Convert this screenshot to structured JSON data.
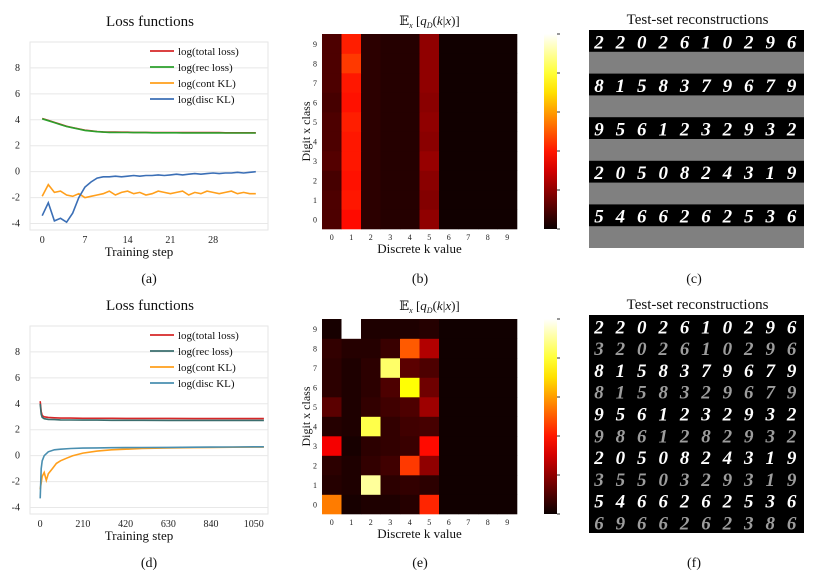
{
  "panels": {
    "a": {
      "caption": "(a)",
      "chart_data": {
        "type": "line",
        "title": "Loss functions",
        "xlabel": "Training step",
        "ylabel": "",
        "xlim": [
          -2,
          37
        ],
        "ylim": [
          -4.5,
          10
        ],
        "xticks": [
          0,
          7,
          14,
          21,
          28
        ],
        "yticks": [
          -4,
          -2,
          0,
          2,
          4,
          6,
          8
        ],
        "legend_loc": "upper-right",
        "series": [
          {
            "name": "log(total loss)",
            "color": "#d62728",
            "x": [
              0,
              1,
              2,
              3,
              4,
              5,
              6,
              7,
              8,
              9,
              10,
              11,
              12,
              13,
              14,
              15,
              16,
              17,
              18,
              19,
              20,
              21,
              22,
              23,
              24,
              25,
              26,
              27,
              28,
              29,
              30,
              31,
              32,
              33,
              34,
              35
            ],
            "y": [
              4.1,
              3.95,
              3.8,
              3.65,
              3.5,
              3.4,
              3.3,
              3.2,
              3.15,
              3.1,
              3.07,
              3.05,
              3.05,
              3.04,
              3.04,
              3.03,
              3.03,
              3.03,
              3.02,
              3.02,
              3.02,
              3.02,
              3.02,
              3.01,
              3.01,
              3.01,
              3.01,
              3.01,
              3.01,
              3.01,
              3.0,
              3.0,
              3.0,
              3.0,
              3.0,
              3.0
            ]
          },
          {
            "name": "log(rec loss)",
            "color": "#2ca02c",
            "x": [
              0,
              1,
              2,
              3,
              4,
              5,
              6,
              7,
              8,
              9,
              10,
              11,
              12,
              13,
              14,
              15,
              16,
              17,
              18,
              19,
              20,
              21,
              22,
              23,
              24,
              25,
              26,
              27,
              28,
              29,
              30,
              31,
              32,
              33,
              34,
              35
            ],
            "y": [
              4.08,
              3.93,
              3.78,
              3.63,
              3.48,
              3.38,
              3.28,
              3.18,
              3.13,
              3.08,
              3.05,
              3.03,
              3.03,
              3.02,
              3.02,
              3.01,
              3.01,
              3.01,
              3.0,
              3.0,
              3.0,
              3.0,
              3.0,
              2.99,
              2.99,
              2.99,
              2.99,
              2.99,
              2.99,
              2.99,
              2.98,
              2.98,
              2.98,
              2.98,
              2.98,
              2.98
            ]
          },
          {
            "name": "log(cont KL)",
            "color": "#ff9f1c",
            "x": [
              0,
              1,
              2,
              3,
              4,
              5,
              6,
              7,
              8,
              9,
              10,
              11,
              12,
              13,
              14,
              15,
              16,
              17,
              18,
              19,
              20,
              21,
              22,
              23,
              24,
              25,
              26,
              27,
              28,
              29,
              30,
              31,
              32,
              33,
              34,
              35
            ],
            "y": [
              -1.9,
              -1.0,
              -1.6,
              -1.5,
              -1.8,
              -1.9,
              -1.7,
              -2.0,
              -1.9,
              -1.8,
              -1.7,
              -1.5,
              -1.8,
              -1.6,
              -1.5,
              -1.7,
              -1.6,
              -1.8,
              -1.7,
              -1.5,
              -1.6,
              -1.7,
              -1.6,
              -1.5,
              -1.8,
              -1.6,
              -1.7,
              -1.5,
              -1.6,
              -1.7,
              -1.6,
              -1.5,
              -1.7,
              -1.6,
              -1.7,
              -1.7
            ]
          },
          {
            "name": "log(disc KL)",
            "color": "#3b6fb6",
            "x": [
              0,
              1,
              2,
              3,
              4,
              5,
              6,
              7,
              8,
              9,
              10,
              11,
              12,
              13,
              14,
              15,
              16,
              17,
              18,
              19,
              20,
              21,
              22,
              23,
              24,
              25,
              26,
              27,
              28,
              29,
              30,
              31,
              32,
              33,
              34,
              35
            ],
            "y": [
              -3.4,
              -2.4,
              -3.8,
              -3.6,
              -3.9,
              -3.2,
              -2.0,
              -1.2,
              -0.8,
              -0.5,
              -0.4,
              -0.4,
              -0.35,
              -0.4,
              -0.35,
              -0.3,
              -0.35,
              -0.3,
              -0.3,
              -0.25,
              -0.3,
              -0.25,
              -0.2,
              -0.25,
              -0.2,
              -0.15,
              -0.2,
              -0.15,
              -0.1,
              -0.15,
              -0.1,
              -0.1,
              -0.05,
              -0.1,
              -0.05,
              0.0
            ]
          }
        ]
      }
    },
    "b": {
      "caption": "(b)",
      "chart_data": {
        "type": "heatmap",
        "title": "𝔼ₓ [q_D(k|x)]",
        "title_parts": [
          "𝔼",
          "x",
          " [",
          "q",
          "D",
          "(",
          "k",
          "|",
          "x",
          ")]"
        ],
        "xlabel": "Discrete k value",
        "ylabel": "Digit x class",
        "x_categories": [
          "0",
          "1",
          "2",
          "3",
          "4",
          "5",
          "6",
          "7",
          "8",
          "9"
        ],
        "y_categories": [
          "0",
          "1",
          "2",
          "3",
          "4",
          "5",
          "6",
          "7",
          "8",
          "9"
        ],
        "colorbar_ticks": [
          "0.0",
          "0.2",
          "0.4",
          "0.6",
          "0.8",
          "1.0"
        ],
        "values": [
          [
            0.1,
            0.38,
            0.05,
            0.04,
            0.04,
            0.2,
            0.01,
            0.01,
            0.01,
            0.01
          ],
          [
            0.1,
            0.4,
            0.05,
            0.04,
            0.04,
            0.18,
            0.01,
            0.01,
            0.01,
            0.01
          ],
          [
            0.09,
            0.39,
            0.05,
            0.04,
            0.04,
            0.19,
            0.01,
            0.01,
            0.01,
            0.01
          ],
          [
            0.11,
            0.4,
            0.05,
            0.04,
            0.04,
            0.21,
            0.01,
            0.01,
            0.01,
            0.01
          ],
          [
            0.1,
            0.4,
            0.05,
            0.04,
            0.04,
            0.19,
            0.01,
            0.01,
            0.01,
            0.01
          ],
          [
            0.1,
            0.41,
            0.05,
            0.04,
            0.04,
            0.2,
            0.01,
            0.01,
            0.01,
            0.01
          ],
          [
            0.09,
            0.39,
            0.05,
            0.04,
            0.04,
            0.19,
            0.01,
            0.01,
            0.01,
            0.01
          ],
          [
            0.1,
            0.4,
            0.05,
            0.04,
            0.04,
            0.2,
            0.01,
            0.01,
            0.01,
            0.01
          ],
          [
            0.1,
            0.45,
            0.05,
            0.04,
            0.04,
            0.2,
            0.01,
            0.01,
            0.01,
            0.01
          ],
          [
            0.1,
            0.41,
            0.05,
            0.04,
            0.04,
            0.2,
            0.01,
            0.01,
            0.01,
            0.01
          ]
        ]
      }
    },
    "c": {
      "caption": "(c)",
      "title": "Test-set reconstructions",
      "rows": [
        {
          "digits": "2202610296",
          "kind": "original"
        },
        {
          "digits": "",
          "kind": "reconstruction"
        },
        {
          "digits": "8158379679",
          "kind": "original"
        },
        {
          "digits": "",
          "kind": "reconstruction"
        },
        {
          "digits": "9561232932",
          "kind": "original"
        },
        {
          "digits": "",
          "kind": "reconstruction"
        },
        {
          "digits": "2050824319",
          "kind": "original"
        },
        {
          "digits": "",
          "kind": "reconstruction"
        },
        {
          "digits": "5466262536",
          "kind": "original"
        },
        {
          "digits": "",
          "kind": "reconstruction"
        }
      ]
    },
    "d": {
      "caption": "(d)",
      "chart_data": {
        "type": "line",
        "title": "Loss functions",
        "xlabel": "Training step",
        "ylabel": "",
        "xlim": [
          -50,
          1120
        ],
        "ylim": [
          -4.5,
          10
        ],
        "xticks": [
          0,
          210,
          420,
          630,
          840,
          1050
        ],
        "yticks": [
          -4,
          -2,
          0,
          2,
          4,
          6,
          8
        ],
        "legend_loc": "upper-right",
        "series": [
          {
            "name": "log(total loss)",
            "color": "#d62728",
            "x": [
              0,
              5,
              10,
              20,
              40,
              70,
              100,
              150,
              210,
              280,
              350,
              420,
              500,
              630,
              760,
              840,
              950,
              1050,
              1100
            ],
            "y": [
              4.2,
              3.4,
              3.1,
              3.0,
              2.95,
              2.92,
              2.9,
              2.9,
              2.88,
              2.88,
              2.88,
              2.87,
              2.87,
              2.87,
              2.86,
              2.86,
              2.86,
              2.86,
              2.86
            ]
          },
          {
            "name": "log(rec loss)",
            "color": "#3a6e6e",
            "x": [
              0,
              5,
              10,
              20,
              40,
              70,
              100,
              150,
              210,
              280,
              350,
              420,
              500,
              630,
              760,
              840,
              950,
              1050,
              1100
            ],
            "y": [
              4.0,
              3.2,
              2.95,
              2.85,
              2.8,
              2.78,
              2.76,
              2.75,
              2.74,
              2.74,
              2.73,
              2.73,
              2.73,
              2.72,
              2.72,
              2.72,
              2.72,
              2.72,
              2.72
            ]
          },
          {
            "name": "log(cont KL)",
            "color": "#ff9f1c",
            "x": [
              0,
              10,
              20,
              30,
              40,
              60,
              80,
              100,
              130,
              160,
              210,
              280,
              350,
              420,
              500,
              630,
              760,
              840,
              950,
              1050,
              1100
            ],
            "y": [
              -2.6,
              -1.6,
              -1.3,
              -1.9,
              -1.4,
              -1.0,
              -0.6,
              -0.4,
              -0.2,
              0.0,
              0.2,
              0.35,
              0.45,
              0.5,
              0.55,
              0.6,
              0.62,
              0.64,
              0.65,
              0.66,
              0.66
            ]
          },
          {
            "name": "log(disc KL)",
            "color": "#4a8fb0",
            "x": [
              0,
              5,
              10,
              20,
              40,
              70,
              100,
              150,
              210,
              280,
              350,
              420,
              500,
              630,
              760,
              840,
              950,
              1050,
              1100
            ],
            "y": [
              -3.3,
              -1.0,
              -0.4,
              0.0,
              0.3,
              0.45,
              0.5,
              0.55,
              0.58,
              0.6,
              0.61,
              0.62,
              0.63,
              0.64,
              0.65,
              0.66,
              0.67,
              0.68,
              0.68
            ]
          }
        ]
      }
    },
    "e": {
      "caption": "(e)",
      "chart_data": {
        "type": "heatmap",
        "title": "𝔼ₓ [q_D(k|x)]",
        "title_parts": [
          "𝔼",
          "x",
          " [",
          "q",
          "D",
          "(",
          "k",
          "|",
          "x",
          ")]"
        ],
        "xlabel": "Discrete k value",
        "ylabel": "Digit x class",
        "x_categories": [
          "0",
          "1",
          "2",
          "3",
          "4",
          "5",
          "6",
          "7",
          "8",
          "9"
        ],
        "y_categories": [
          "0",
          "1",
          "2",
          "3",
          "4",
          "5",
          "6",
          "7",
          "8",
          "9"
        ],
        "colorbar_ticks": [
          "0.0",
          "0.2",
          "0.4",
          "0.6",
          "0.8",
          "1.0"
        ],
        "values": [
          [
            0.55,
            0.02,
            0.03,
            0.03,
            0.04,
            0.42,
            0.01,
            0.01,
            0.01,
            0.01
          ],
          [
            0.04,
            0.03,
            0.9,
            0.05,
            0.06,
            0.05,
            0.01,
            0.01,
            0.01,
            0.01
          ],
          [
            0.05,
            0.03,
            0.06,
            0.08,
            0.45,
            0.2,
            0.01,
            0.01,
            0.01,
            0.01
          ],
          [
            0.35,
            0.02,
            0.05,
            0.06,
            0.07,
            0.38,
            0.01,
            0.01,
            0.01,
            0.01
          ],
          [
            0.04,
            0.03,
            0.82,
            0.06,
            0.08,
            0.09,
            0.01,
            0.01,
            0.01,
            0.01
          ],
          [
            0.12,
            0.03,
            0.06,
            0.08,
            0.1,
            0.22,
            0.01,
            0.01,
            0.01,
            0.01
          ],
          [
            0.05,
            0.03,
            0.05,
            0.1,
            0.75,
            0.15,
            0.01,
            0.01,
            0.01,
            0.01
          ],
          [
            0.05,
            0.03,
            0.05,
            0.85,
            0.12,
            0.1,
            0.01,
            0.01,
            0.01,
            0.01
          ],
          [
            0.06,
            0.04,
            0.04,
            0.07,
            0.5,
            0.25,
            0.01,
            0.01,
            0.01,
            0.01
          ],
          [
            0.02,
            1.0,
            0.03,
            0.03,
            0.03,
            0.04,
            0.01,
            0.01,
            0.01,
            0.01
          ]
        ]
      }
    },
    "f": {
      "caption": "(f)",
      "title": "Test-set reconstructions",
      "rows": [
        {
          "digits": "2202610296",
          "kind": "original"
        },
        {
          "digits": "3202610296",
          "kind": "reconstruction"
        },
        {
          "digits": "8158379679",
          "kind": "original"
        },
        {
          "digits": "8158329679",
          "kind": "reconstruction"
        },
        {
          "digits": "9561232932",
          "kind": "original"
        },
        {
          "digits": "9861282932",
          "kind": "reconstruction"
        },
        {
          "digits": "2050824319",
          "kind": "original"
        },
        {
          "digits": "3550329319",
          "kind": "reconstruction"
        },
        {
          "digits": "5466262536",
          "kind": "original"
        },
        {
          "digits": "6966262386",
          "kind": "reconstruction"
        }
      ]
    }
  }
}
